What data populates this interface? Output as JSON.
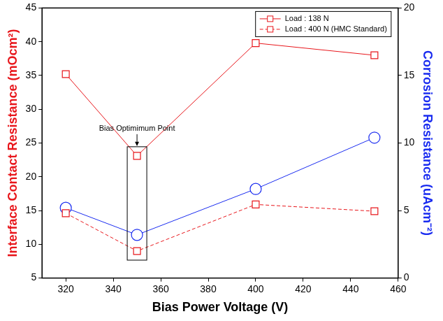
{
  "chart_data": {
    "type": "line",
    "x_label": "Bias Power Voltage (V)",
    "y_label": "Interface Contact Resistance (mOcm²)",
    "y2_label": "Corrosion Resistance (uAcm⁻²)",
    "x": [
      320,
      350,
      400,
      450
    ],
    "xlim": [
      310,
      460
    ],
    "xticks": [
      320,
      340,
      360,
      380,
      400,
      420,
      440,
      460
    ],
    "ylim": [
      5,
      45
    ],
    "yticks": [
      5,
      10,
      15,
      20,
      25,
      30,
      35,
      40,
      45
    ],
    "y2lim": [
      0,
      20
    ],
    "y2ticks": [
      0,
      5,
      10,
      15,
      20
    ],
    "grid": false,
    "legend": "upper right",
    "series": [
      {
        "name": "Load : 138 N",
        "color": "#e8161b",
        "marker": "square",
        "line_style": "solid",
        "values": [
          35.2,
          23.1,
          39.8,
          38.0
        ]
      },
      {
        "name": "Load : 400 N (HMC Standard)",
        "color": "#e8161b",
        "marker": "square",
        "line_style": "dashed",
        "values": [
          14.6,
          9.0,
          15.9,
          14.9
        ]
      },
      {
        "color": "#1a2cf0",
        "marker": "circle",
        "line_style": "solid",
        "axis": "y2",
        "values": [
          5.2,
          3.2,
          6.6,
          10.4
        ]
      }
    ],
    "annotations": [
      {
        "text": "Bias Optimimum Point",
        "x": 350
      }
    ]
  }
}
